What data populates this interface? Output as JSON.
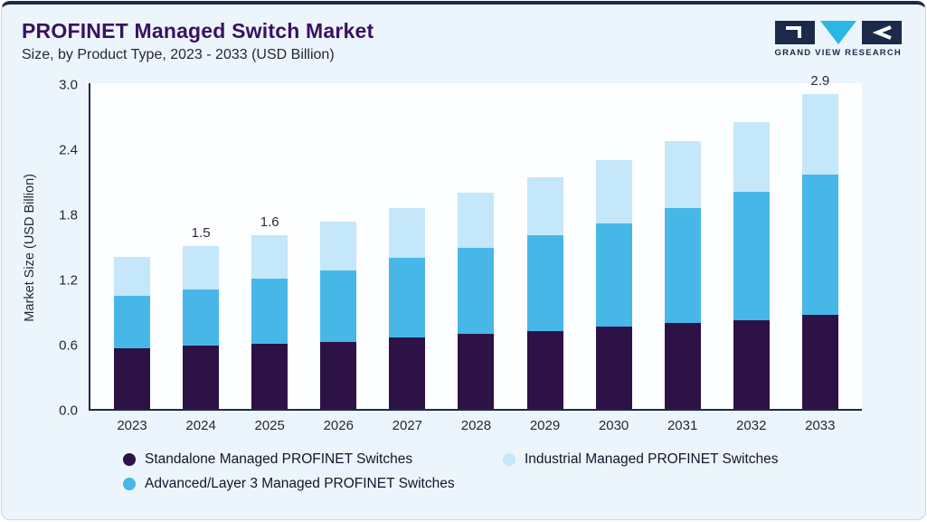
{
  "header": {
    "title": "PROFINET Managed Switch Market",
    "subtitle": "Size, by Product Type, 2023 - 2033 (USD Billion)",
    "logo_text": "GRAND VIEW RESEARCH"
  },
  "chart_data": {
    "type": "bar",
    "stacked": true,
    "title": "PROFINET Managed Switch Market Size, by Product Type, 2023 - 2033 (USD Billion)",
    "xlabel": "",
    "ylabel": "Market Size (USD Billion)",
    "ylim": [
      0,
      3.0
    ],
    "yticks": [
      "0.0",
      "0.6",
      "1.2",
      "1.8",
      "2.4",
      "3.0"
    ],
    "grid": false,
    "legend_position": "bottom",
    "categories": [
      "2023",
      "2024",
      "2025",
      "2026",
      "2027",
      "2028",
      "2029",
      "2030",
      "2031",
      "2032",
      "2033"
    ],
    "series": [
      {
        "name": "Standalone Managed PROFINET Switches",
        "color": "#2d1245",
        "values": [
          0.56,
          0.58,
          0.6,
          0.62,
          0.66,
          0.69,
          0.72,
          0.76,
          0.79,
          0.82,
          0.87
        ]
      },
      {
        "name": "Advanced/Layer 3 Managed PROFINET Switches",
        "color": "#47b7e8",
        "values": [
          0.48,
          0.52,
          0.6,
          0.66,
          0.73,
          0.79,
          0.88,
          0.95,
          1.06,
          1.18,
          1.29
        ]
      },
      {
        "name": "Industrial Managed PROFINET Switches",
        "color": "#c4e7f9",
        "values": [
          0.36,
          0.4,
          0.4,
          0.45,
          0.46,
          0.51,
          0.53,
          0.58,
          0.62,
          0.64,
          0.74
        ]
      }
    ],
    "totals": [
      1.4,
      1.5,
      1.6,
      1.73,
      1.85,
      1.99,
      2.13,
      2.29,
      2.47,
      2.64,
      2.9
    ],
    "bar_labels": {
      "2024": "1.5",
      "2025": "1.6",
      "2033": "2.9"
    }
  },
  "legend": {
    "items": [
      {
        "label": "Standalone Managed PROFINET Switches",
        "color": "#2d1245"
      },
      {
        "label": "Industrial Managed PROFINET Switches",
        "color": "#c4e7f9"
      },
      {
        "label": "Advanced/Layer 3 Managed PROFINET Switches",
        "color": "#47b7e8"
      }
    ]
  },
  "colors": {
    "accent_navy": "#1b2a4a",
    "logo_cyan": "#2bb7e5",
    "title_purple": "#3a1161",
    "card_background": "#ecf5fb"
  }
}
